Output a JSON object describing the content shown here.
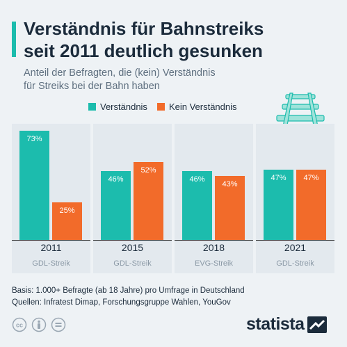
{
  "header": {
    "title_line1": "Verständnis für Bahnstreiks",
    "title_line2": "seit 2011 deutlich gesunken",
    "subtitle_line1": "Anteil der Befragten, die (kein) Verständnis",
    "subtitle_line2": "für Streiks bei der Bahn haben"
  },
  "colors": {
    "teal": "#1cbcad",
    "orange": "#f26b2a",
    "accent": "#1cbcad"
  },
  "chart_data": {
    "type": "bar",
    "title": "Verständnis für Bahnstreiks seit 2011 deutlich gesunken",
    "subtitle": "Anteil der Befragten, die (kein) Verständnis für Streiks bei der Bahn haben",
    "categories": [
      "2011",
      "2015",
      "2018",
      "2021"
    ],
    "category_sublabels": [
      "GDL-Streik",
      "GDL-Streik",
      "EVG-Streik",
      "GDL-Streik"
    ],
    "series": [
      {
        "name": "Verständnis",
        "color": "#1cbcad",
        "values": [
          73,
          46,
          46,
          47
        ],
        "labels": [
          "73%",
          "46%",
          "46%",
          "47%"
        ]
      },
      {
        "name": "Kein Verständnis",
        "color": "#f26b2a",
        "values": [
          25,
          52,
          43,
          47
        ],
        "labels": [
          "25%",
          "52%",
          "43%",
          "47%"
        ]
      }
    ],
    "unit": "%",
    "ylim": [
      0,
      73
    ],
    "grid": false,
    "legend_position": "top"
  },
  "footer": {
    "basis": "Basis: 1.000+ Befragte (ab 18 Jahre) pro Umfrage in Deutschland",
    "sources": "Quellen: Infratest Dimap, Forschungsgruppe Wahlen, YouGov"
  },
  "brand": {
    "name": "statista",
    "icon": "statista-logo"
  },
  "icons": [
    "cc-icon",
    "person-icon",
    "equals-icon",
    "rails-icon"
  ]
}
